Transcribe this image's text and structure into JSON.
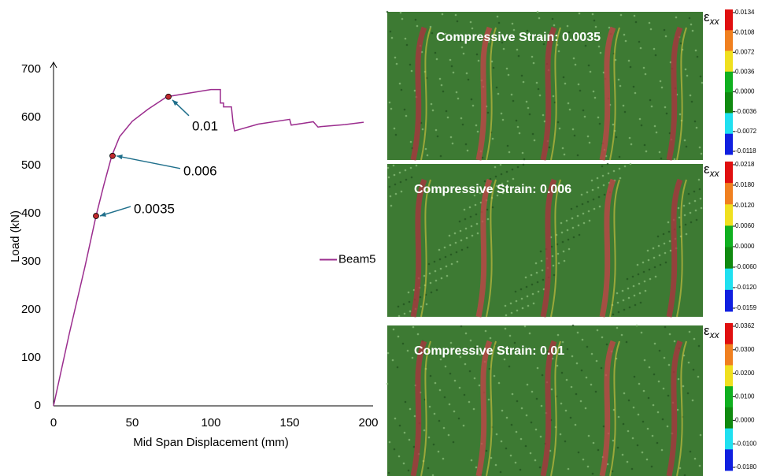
{
  "chart_data": {
    "type": "line",
    "x_label": "Mid Span Displacement (mm)",
    "y_label": "Load (kN)",
    "x": [
      0,
      10,
      20,
      27,
      32,
      37,
      42,
      50,
      60,
      72,
      85,
      100,
      106,
      106,
      108,
      108,
      113,
      114,
      115,
      130,
      150,
      151,
      165,
      168,
      170,
      185,
      197
    ],
    "series": [
      {
        "name": "Beam5",
        "color": "#9b2d8e",
        "values": [
          0,
          150,
          290,
          395,
          460,
          520,
          560,
          592,
          617,
          643,
          650,
          658,
          658,
          630,
          630,
          622,
          622,
          590,
          572,
          586,
          596,
          584,
          591,
          580,
          581,
          585,
          590
        ]
      }
    ],
    "annotations": [
      {
        "text": "0.0035",
        "x": 27,
        "y": 395
      },
      {
        "text": "0.006",
        "x": 37.5,
        "y": 520
      },
      {
        "text": "0.01",
        "x": 73,
        "y": 643
      }
    ],
    "xlim": [
      0,
      200
    ],
    "ylim": [
      0,
      700
    ],
    "xticks": [
      0,
      50,
      100,
      150,
      200
    ],
    "yticks": [
      0,
      100,
      200,
      300,
      400,
      500,
      600,
      700
    ],
    "grid": false,
    "legend": "right"
  },
  "panels": [
    {
      "title": "Compressive Strain: 0.0035",
      "symbol": "ε",
      "subscript": "xx",
      "colorbar": [
        "0.0134",
        "0.0108",
        "0.0072",
        "0.0036",
        "0.0000",
        "-0.0036",
        "-0.0072",
        "-0.0118"
      ]
    },
    {
      "title": "Compressive Strain: 0.006",
      "symbol": "ε",
      "subscript": "xx",
      "colorbar": [
        "0.0218",
        "0.0180",
        "0.0120",
        "0.0060",
        "0.0000",
        "-0.0060",
        "-0.0120",
        "-0.0159"
      ]
    },
    {
      "title": "Compressive Strain: 0.01",
      "symbol": "ε",
      "subscript": "xx",
      "colorbar": [
        "0.0362",
        "0.0300",
        "0.0200",
        "0.0100",
        "0.0000",
        "-0.0100",
        "-0.0180"
      ]
    }
  ]
}
